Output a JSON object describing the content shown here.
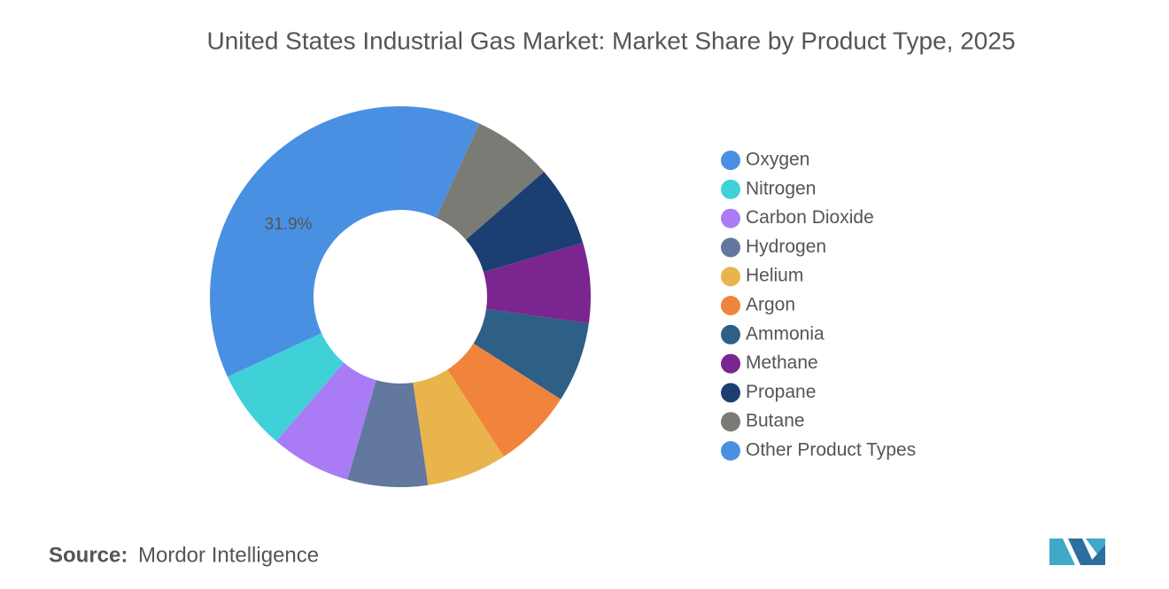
{
  "chart_data": {
    "type": "donut",
    "title": "United States Industrial Gas Market: Market Share by Product Type, 2025",
    "categories": [
      "Oxygen",
      "Nitrogen",
      "Carbon Dioxide",
      "Hydrogen",
      "Helium",
      "Argon",
      "Ammonia",
      "Methane",
      "Propane",
      "Butane",
      "Other Product Types"
    ],
    "values": [
      31.9,
      6.81,
      6.81,
      6.81,
      6.81,
      6.81,
      6.81,
      6.81,
      6.81,
      6.81,
      6.81
    ],
    "value_labels": [
      "31.9%",
      null,
      null,
      null,
      null,
      null,
      null,
      null,
      null,
      null,
      null
    ],
    "colors": [
      "#4a90e2",
      "#40d0d8",
      "#a97cf5",
      "#63789e",
      "#e9b44c",
      "#f0843c",
      "#2e5f86",
      "#7b2590",
      "#1b3f73",
      "#7a7b74",
      "#4b8fe3"
    ],
    "source_label": "Source:",
    "source": "Mordor Intelligence"
  }
}
